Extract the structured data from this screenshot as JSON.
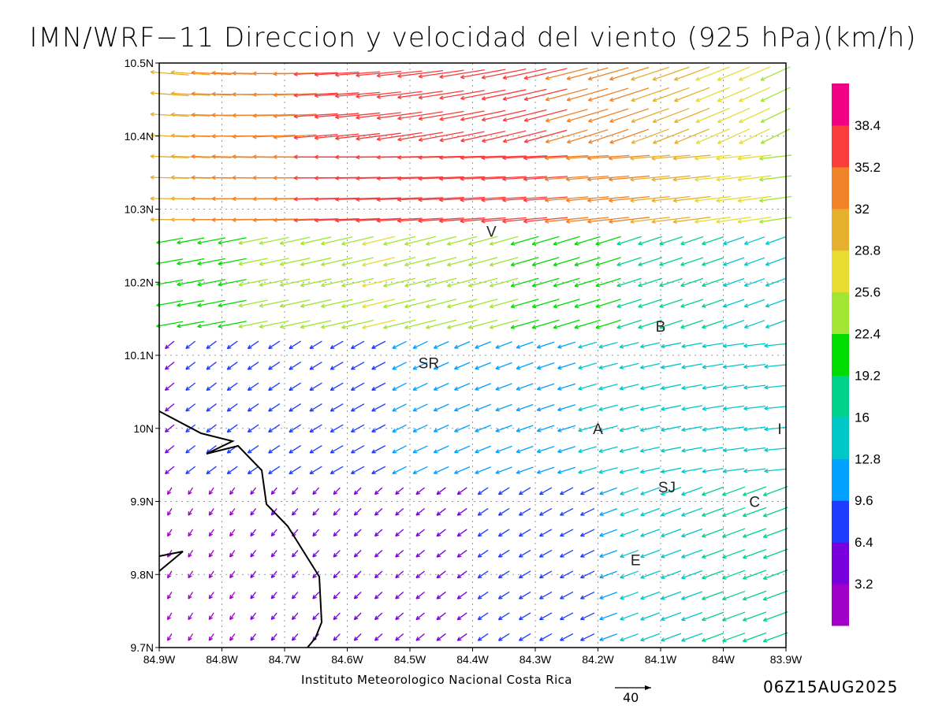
{
  "title": "IMN/WRF−11 Direccion y velocidad del viento (925 hPa)(km/h)",
  "credit": "Instituto Meteorologico Nacional Costa Rica",
  "reference_vector_label": "40",
  "timestamp": "06Z15AUG2025",
  "map": {
    "lon_range": [
      -84.9,
      -83.9
    ],
    "lat_range": [
      9.7,
      10.5
    ],
    "lon_ticks": [
      "84.9W",
      "84.8W",
      "84.7W",
      "84.6W",
      "84.5W",
      "84.4W",
      "84.3W",
      "84.2W",
      "84.1W",
      "84W",
      "83.9W"
    ],
    "lat_ticks": [
      "9.7N",
      "9.8N",
      "9.9N",
      "10N",
      "10.1N",
      "10.2N",
      "10.3N",
      "10.4N",
      "10.5N"
    ],
    "grid": "dotted",
    "coastline": true,
    "stations": [
      {
        "label": "V",
        "lon": -84.37,
        "lat": 10.27
      },
      {
        "label": "B",
        "lon": -84.1,
        "lat": 10.14
      },
      {
        "label": "SR",
        "lon": -84.47,
        "lat": 10.09
      },
      {
        "label": "A",
        "lon": -84.2,
        "lat": 10.0
      },
      {
        "label": "I",
        "lon": -83.91,
        "lat": 10.0
      },
      {
        "label": "SJ",
        "lon": -84.09,
        "lat": 9.92
      },
      {
        "label": "C",
        "lon": -83.95,
        "lat": 9.9
      },
      {
        "label": "E",
        "lon": -84.14,
        "lat": 9.82
      }
    ]
  },
  "colorbar": {
    "labels": [
      "3.2",
      "6.4",
      "9.6",
      "12.8",
      "16",
      "19.2",
      "22.4",
      "25.6",
      "28.8",
      "32",
      "35.2",
      "38.4"
    ],
    "colors": [
      "#a000c8",
      "#7800dc",
      "#1e3cff",
      "#00a0ff",
      "#00c8c8",
      "#00d28c",
      "#00dc00",
      "#a0e632",
      "#e6dc32",
      "#e6af2d",
      "#f08228",
      "#fa3c3c",
      "#f00082"
    ]
  }
}
